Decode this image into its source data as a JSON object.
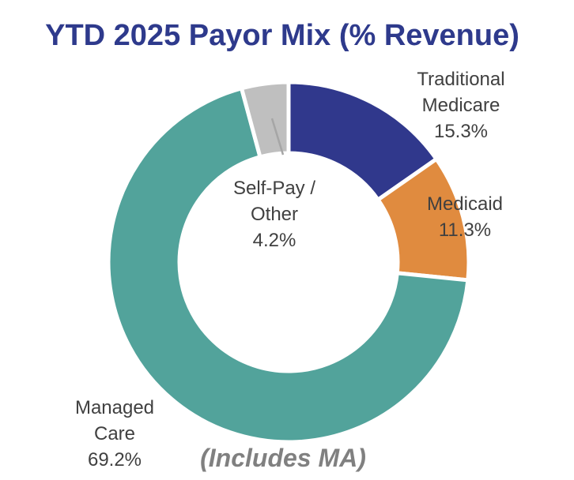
{
  "chart_data": {
    "type": "pie",
    "title": "YTD 2025 Payor Mix (% Revenue)",
    "donut": true,
    "slices": [
      {
        "label_lines": [
          "Traditional",
          "Medicare"
        ],
        "value": 15.3,
        "value_label": "15.3%",
        "color": "#30388c"
      },
      {
        "label_lines": [
          "Medicaid"
        ],
        "value": 11.3,
        "value_label": "11.3%",
        "color": "#e08b3f"
      },
      {
        "label_lines": [
          "Managed",
          "Care"
        ],
        "value": 69.2,
        "value_label": "69.2%",
        "color": "#52a39b"
      },
      {
        "label_lines": [
          "Self-Pay /",
          "Other"
        ],
        "value": 4.2,
        "value_label": "4.2%",
        "color": "#bfbfbf"
      }
    ],
    "annotation": "(Includes MA)",
    "start_angle": "12 o'clock",
    "direction": "clockwise"
  }
}
